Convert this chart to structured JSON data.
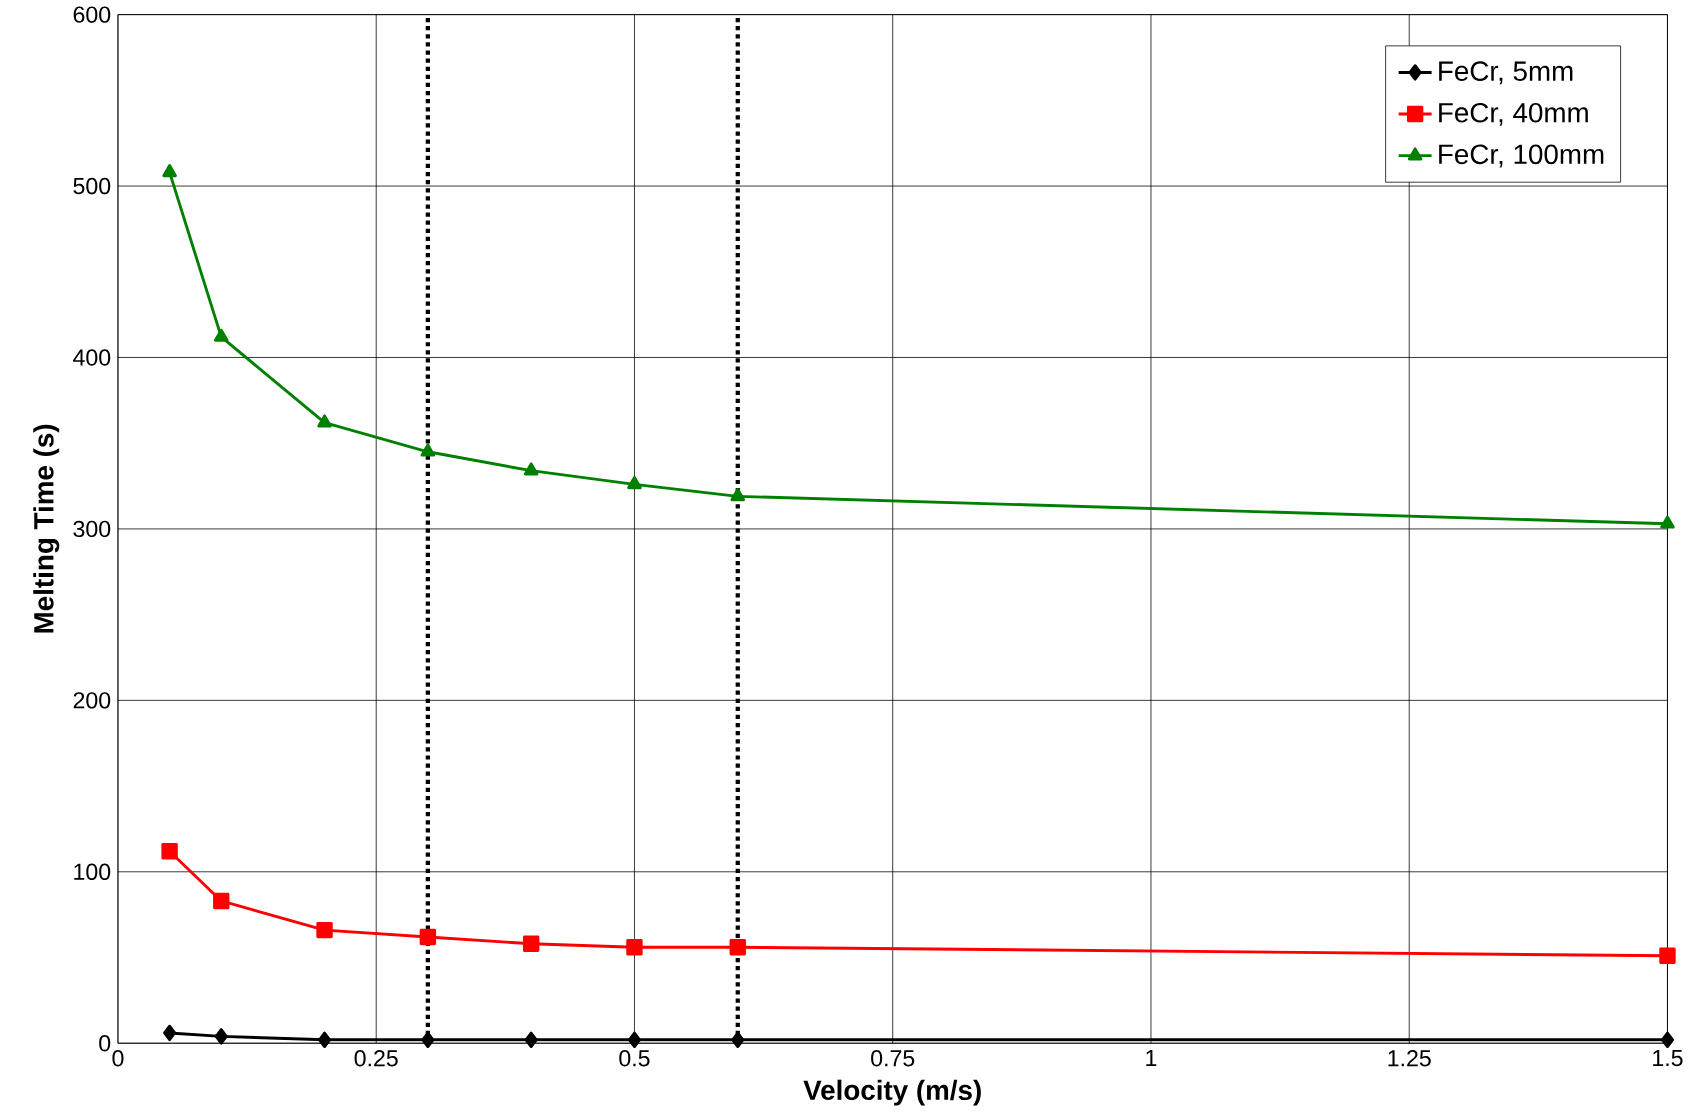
{
  "chart_data": {
    "type": "line",
    "xlabel": "Velocity (m/s)",
    "ylabel": "Melting Time (s)",
    "x": [
      0.05,
      0.1,
      0.2,
      0.3,
      0.4,
      0.5,
      0.6,
      1.5
    ],
    "series": [
      {
        "name": "FeCr, 5mm",
        "color": "#000000",
        "marker": "diamond",
        "values": [
          6,
          4,
          2,
          2,
          2,
          2,
          2,
          2
        ]
      },
      {
        "name": "FeCr, 40mm",
        "color": "#ff0000",
        "marker": "square",
        "values": [
          112,
          83,
          66,
          62,
          58,
          56,
          56,
          51
        ]
      },
      {
        "name": "FeCr, 100mm",
        "color": "#008000",
        "marker": "triangle",
        "values": [
          508,
          412,
          362,
          345,
          334,
          326,
          319,
          303
        ]
      }
    ],
    "xlim": [
      0,
      1.5
    ],
    "xticks": [
      0,
      0.25,
      0.5,
      0.75,
      1,
      1.25,
      1.5
    ],
    "ylim": [
      0,
      600
    ],
    "yticks": [
      0,
      100,
      200,
      300,
      400,
      500,
      600
    ],
    "grid": true,
    "legend": "top right",
    "ref_lines": [
      {
        "axis": "x",
        "value": 0.3,
        "color": "#000000",
        "line_style": "dotted"
      },
      {
        "axis": "x",
        "value": 0.6,
        "color": "#000000",
        "line_style": "dotted"
      }
    ]
  }
}
